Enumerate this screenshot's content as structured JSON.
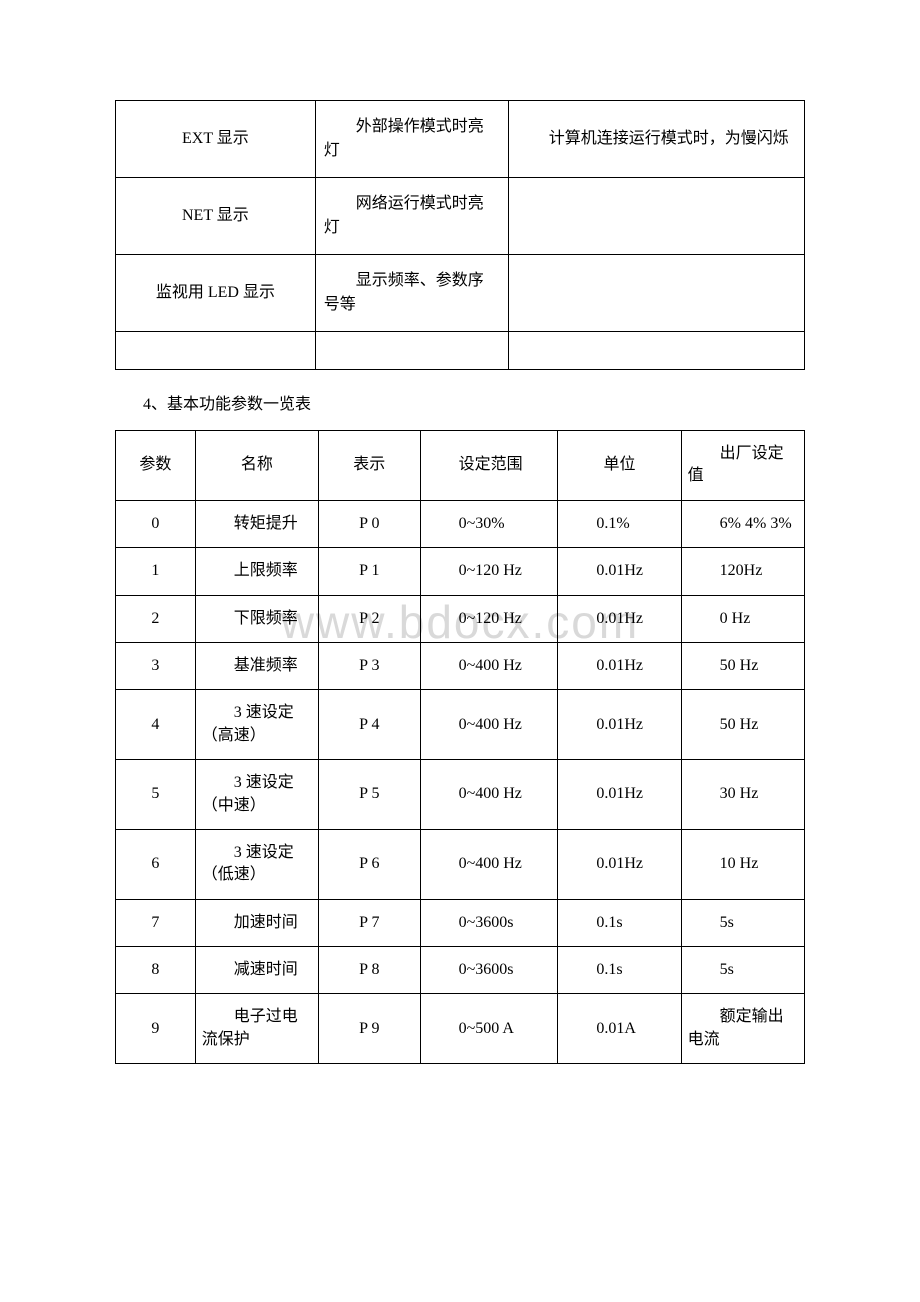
{
  "table1": {
    "rows": [
      {
        "c1": "EXT 显示",
        "c2": "外部操作模式时亮灯",
        "c3": "计算机连接运行模式时，为慢闪烁"
      },
      {
        "c1": "NET 显示",
        "c2": "网络运行模式时亮灯",
        "c3": ""
      },
      {
        "c1": "监视用 LED 显示",
        "c2": "显示频率、参数序号等",
        "c3": ""
      }
    ]
  },
  "heading": "4、基本功能参数一览表",
  "table2": {
    "headers": [
      "参数",
      "名称",
      "表示",
      "设定范围",
      "单位",
      "出厂设定值"
    ],
    "rows": [
      {
        "param": "0",
        "name": "转矩提升",
        "repr": "P 0",
        "range": "0~30%",
        "unit": "0.1%",
        "factory": "6% 4% 3%"
      },
      {
        "param": "1",
        "name": "上限频率",
        "repr": "P 1",
        "range": "0~120 Hz",
        "unit": "0.01Hz",
        "factory": "120Hz"
      },
      {
        "param": "2",
        "name": "下限频率",
        "repr": "P 2",
        "range": "0~120 Hz",
        "unit": "0.01Hz",
        "factory": "0 Hz"
      },
      {
        "param": "3",
        "name": "基准频率",
        "repr": "P 3",
        "range": "0~400 Hz",
        "unit": "0.01Hz",
        "factory": "50 Hz"
      },
      {
        "param": "4",
        "name": "3 速设定（高速）",
        "repr": "P 4",
        "range": "0~400 Hz",
        "unit": "0.01Hz",
        "factory": "50 Hz"
      },
      {
        "param": "5",
        "name": "3 速设定（中速）",
        "repr": "P 5",
        "range": "0~400 Hz",
        "unit": "0.01Hz",
        "factory": "30 Hz"
      },
      {
        "param": "6",
        "name": "3 速设定（低速）",
        "repr": "P 6",
        "range": "0~400 Hz",
        "unit": "0.01Hz",
        "factory": "10 Hz"
      },
      {
        "param": "7",
        "name": "加速时间",
        "repr": "P 7",
        "range": "0~3600s",
        "unit": "0.1s",
        "factory": "5s"
      },
      {
        "param": "8",
        "name": "减速时间",
        "repr": "P 8",
        "range": "0~3600s",
        "unit": "0.1s",
        "factory": "5s"
      },
      {
        "param": "9",
        "name": "电子过电流保护",
        "repr": "P 9",
        "range": "0~500 A",
        "unit": "0.01A",
        "factory": "额定输出电流"
      }
    ]
  },
  "watermark": "www.bdocx.com"
}
